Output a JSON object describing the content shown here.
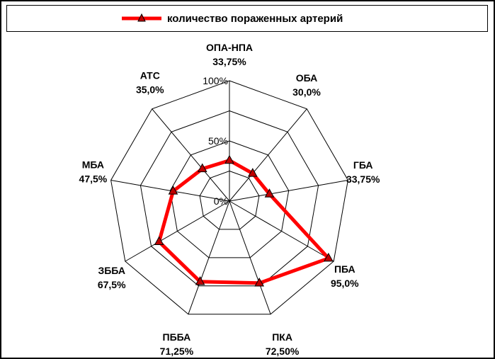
{
  "chart_data": {
    "type": "radar",
    "title": "",
    "legend": {
      "position": "top",
      "entries": [
        "количество пораженных артерий"
      ]
    },
    "series": [
      {
        "name": "количество пораженных артерий",
        "values": [
          33.75,
          30.0,
          33.75,
          95.0,
          72.5,
          71.25,
          67.5,
          47.5,
          35.0
        ],
        "value_labels": [
          "33,75%",
          "30,0%",
          "33,75%",
          "95,0%",
          "72,50%",
          "71,25%",
          "67,5%",
          "47,5%",
          "35,0%"
        ]
      }
    ],
    "categories": [
      "ОПА-НПА",
      "ОБА",
      "ГБА",
      "ПБА",
      "ПКА",
      "ПББА",
      "ЗББА",
      "МБА",
      "АТС"
    ],
    "rlim": [
      0,
      100
    ],
    "ticks": [
      0,
      50,
      100
    ],
    "tick_labels": [
      "0%",
      "50%",
      "100%"
    ],
    "grid": true,
    "colors": {
      "series": "#ff0000",
      "marker": "#c00000",
      "grid": "#000000"
    }
  }
}
